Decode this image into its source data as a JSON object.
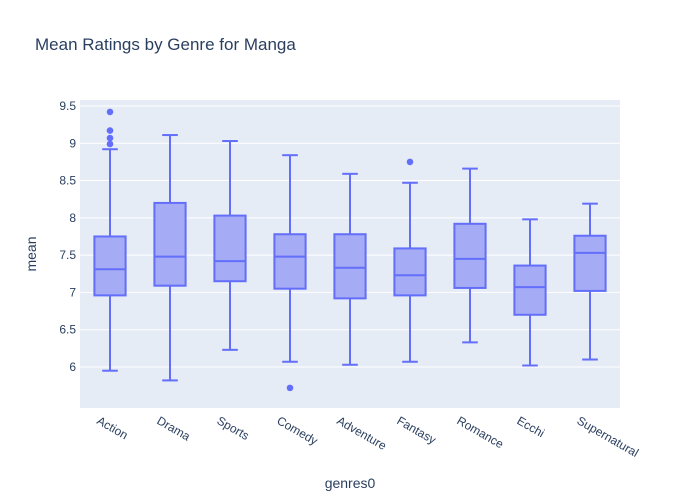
{
  "chart_data": {
    "type": "box",
    "title": "Mean Ratings by Genre for Manga",
    "xlabel": "genres0",
    "ylabel": "mean",
    "ylim": [
      5.45,
      9.58
    ],
    "yticks": [
      "6",
      "6.5",
      "7",
      "7.5",
      "8",
      "8.5",
      "9",
      "9.5"
    ],
    "grid": true,
    "colors": {
      "plot_bg": "#e5ecf6",
      "grid": "#ffffff",
      "box_line": "#636efa",
      "box_fill": "#a5abf5",
      "text": "#2a3f5f"
    },
    "categories": [
      "Action",
      "Drama",
      "Sports",
      "Comedy",
      "Adventure",
      "Fantasy",
      "Romance",
      "Ecchi",
      "Supernatural"
    ],
    "boxes": [
      {
        "name": "Action",
        "min": 5.95,
        "q1": 6.96,
        "median": 7.31,
        "q3": 7.75,
        "max": 8.92,
        "outliers": [
          8.99,
          9.07,
          9.17,
          9.42
        ]
      },
      {
        "name": "Drama",
        "min": 5.82,
        "q1": 7.09,
        "median": 7.48,
        "q3": 8.2,
        "max": 9.11,
        "outliers": []
      },
      {
        "name": "Sports",
        "min": 6.23,
        "q1": 7.15,
        "median": 7.42,
        "q3": 8.03,
        "max": 9.03,
        "outliers": []
      },
      {
        "name": "Comedy",
        "min": 6.07,
        "q1": 7.05,
        "median": 7.48,
        "q3": 7.78,
        "max": 8.84,
        "outliers": [
          5.72
        ]
      },
      {
        "name": "Adventure",
        "min": 6.03,
        "q1": 6.92,
        "median": 7.33,
        "q3": 7.78,
        "max": 8.59,
        "outliers": []
      },
      {
        "name": "Fantasy",
        "min": 6.07,
        "q1": 6.96,
        "median": 7.23,
        "q3": 7.59,
        "max": 8.47,
        "outliers": [
          8.75
        ]
      },
      {
        "name": "Romance",
        "min": 6.33,
        "q1": 7.06,
        "median": 7.45,
        "q3": 7.92,
        "max": 8.66,
        "outliers": []
      },
      {
        "name": "Ecchi",
        "min": 6.02,
        "q1": 6.7,
        "median": 7.07,
        "q3": 7.36,
        "max": 7.98,
        "outliers": []
      },
      {
        "name": "Supernatural",
        "min": 6.1,
        "q1": 7.02,
        "median": 7.53,
        "q3": 7.76,
        "max": 8.19,
        "outliers": []
      }
    ]
  }
}
